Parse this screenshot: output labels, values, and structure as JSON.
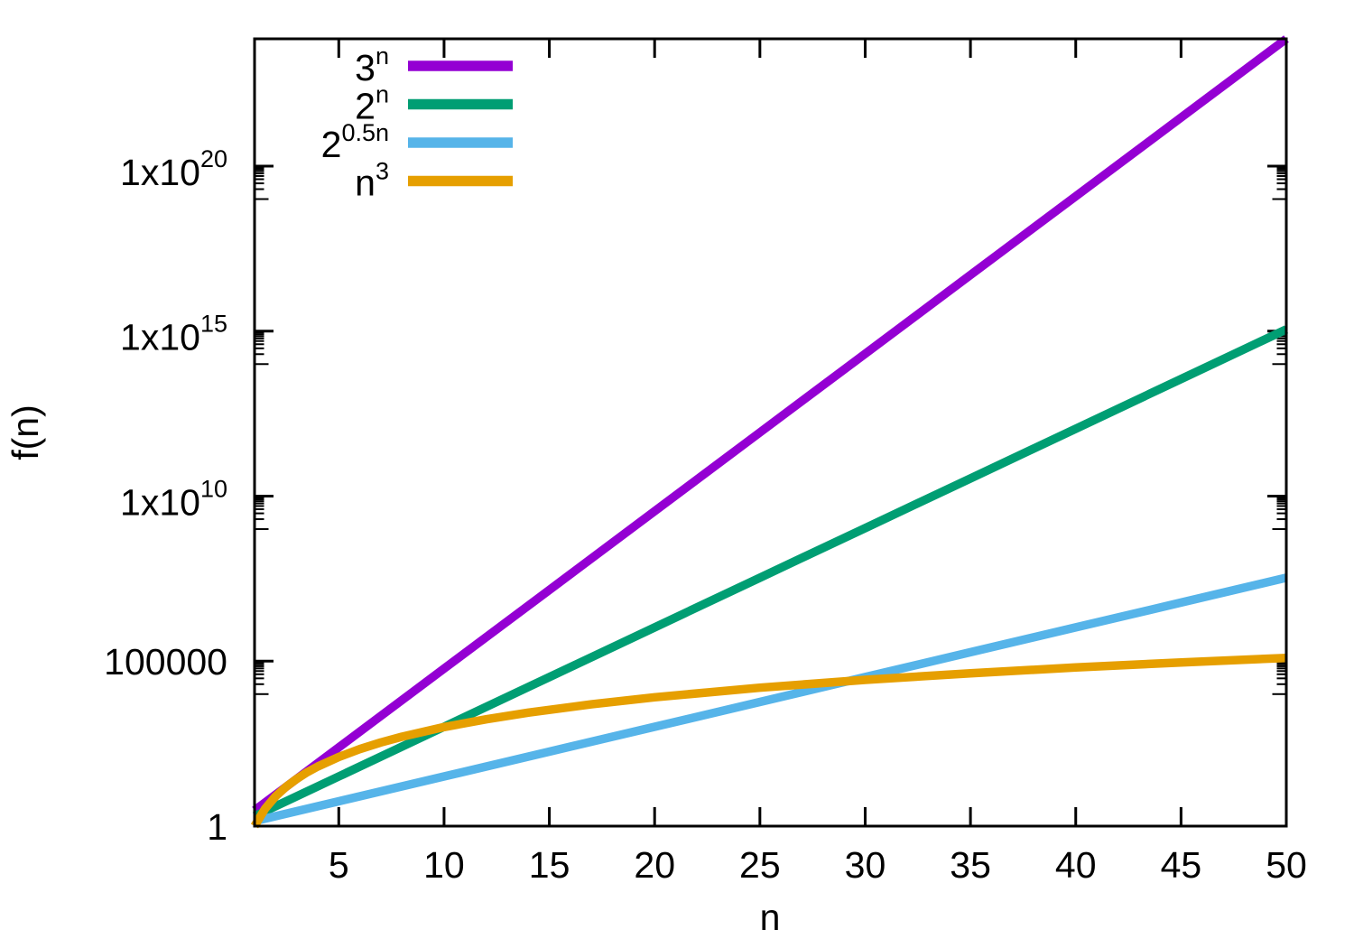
{
  "chart_data": {
    "type": "line",
    "title": "",
    "xlabel": "n",
    "ylabel": "f(n)",
    "x_range": [
      1,
      50
    ],
    "x_ticks": [
      5,
      10,
      15,
      20,
      25,
      30,
      35,
      40,
      45,
      50
    ],
    "y_axis": {
      "scale": "log10",
      "range": [
        1,
        7.179e+23
      ],
      "major_ticks": [
        {
          "value": 1,
          "label_base": "1",
          "label_sup": ""
        },
        {
          "value": 100000.0,
          "label_base": "100000",
          "label_sup": ""
        },
        {
          "value": 10000000000.0,
          "label_base": "1x10",
          "label_sup": "10"
        },
        {
          "value": 1000000000000000.0,
          "label_base": "1x10",
          "label_sup": "15"
        },
        {
          "value": 1e+20,
          "label_base": "1x10",
          "label_sup": "20"
        }
      ],
      "minor_tick_rule": "mantissas 1-9 in the decade below each major tick"
    },
    "grid": false,
    "legend_position": "top-left-inside",
    "line_width": 9.5,
    "axis_color": "#000000",
    "background_color": "#ffffff",
    "series": [
      {
        "name": "3^n",
        "label_base": "3",
        "label_sup": "n",
        "color": "#9400D3",
        "points": [
          [
            1,
            3
          ],
          [
            5,
            243
          ],
          [
            10,
            59049
          ],
          [
            15,
            14348907
          ],
          [
            20,
            3487000000.0
          ],
          [
            25,
            847300000000.0
          ],
          [
            30,
            205900000000000.0
          ],
          [
            35,
            5.003e+16
          ],
          [
            40,
            1.216e+19
          ],
          [
            45,
            2.954e+21
          ],
          [
            50,
            7.179e+23
          ]
        ]
      },
      {
        "name": "2^n",
        "label_base": "2",
        "label_sup": "n",
        "color": "#009E73",
        "points": [
          [
            1,
            2
          ],
          [
            5,
            32
          ],
          [
            10,
            1024
          ],
          [
            15,
            32768
          ],
          [
            20,
            1048576
          ],
          [
            25,
            33550000.0
          ],
          [
            30,
            1074000000.0
          ],
          [
            35,
            34360000000.0
          ],
          [
            40,
            1099500000000.0
          ],
          [
            45,
            35180000000000.0
          ],
          [
            50,
            1126000000000000.0
          ]
        ]
      },
      {
        "name": "2^0.5n",
        "label_base": "2",
        "label_sup": "0.5n",
        "color": "#56B4E9",
        "points": [
          [
            1,
            1.414
          ],
          [
            5,
            5.657
          ],
          [
            10,
            32
          ],
          [
            15,
            181.02
          ],
          [
            20,
            1024
          ],
          [
            25,
            5792.6
          ],
          [
            30,
            32768
          ],
          [
            35,
            185363.8
          ],
          [
            40,
            1048576
          ],
          [
            45,
            5931641.6
          ],
          [
            50,
            33550000.0
          ]
        ]
      },
      {
        "name": "n^3",
        "label_base": "n",
        "label_sup": "3",
        "color": "#E69F00",
        "points": [
          [
            1,
            1
          ],
          [
            1.5,
            3.375
          ],
          [
            2,
            8
          ],
          [
            2.5,
            15.625
          ],
          [
            3,
            27
          ],
          [
            3.5,
            42.875
          ],
          [
            4,
            64
          ],
          [
            5,
            125
          ],
          [
            6,
            216
          ],
          [
            7,
            343
          ],
          [
            8,
            512
          ],
          [
            10,
            1000
          ],
          [
            12,
            1728
          ],
          [
            14,
            2744
          ],
          [
            17,
            4913
          ],
          [
            20,
            8000
          ],
          [
            25,
            15625
          ],
          [
            30,
            27000
          ],
          [
            35,
            42875
          ],
          [
            40,
            64000
          ],
          [
            45,
            91125
          ],
          [
            50,
            125000
          ]
        ]
      }
    ]
  }
}
